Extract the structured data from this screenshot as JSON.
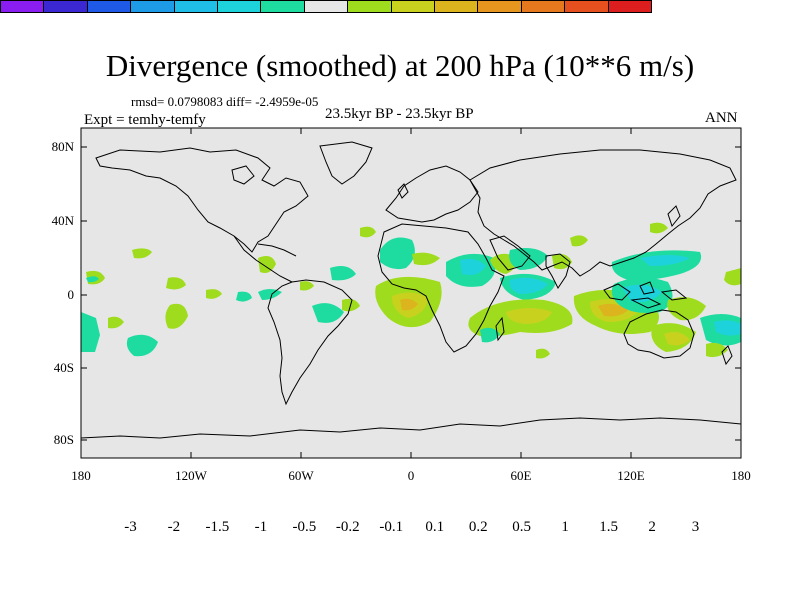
{
  "title": "Divergence (smoothed) at 200 hPa (10**6 m/s)",
  "stats": "rmsd= 0.0798083 diff= -2.4959e-05",
  "expt": "Expt = temhy-temfy",
  "period": "23.5kyr BP - 23.5kyr BP",
  "season": "ANN",
  "y_axis_labels": [
    "80N",
    "40N",
    "0",
    "40S",
    "80S"
  ],
  "x_axis_labels": [
    "180",
    "120W",
    "60W",
    "0",
    "60E",
    "120E",
    "180"
  ],
  "colorbar": {
    "labels": [
      "-3",
      "-2",
      "-1.5",
      "-1",
      "-0.5",
      "-0.2",
      "-0.1",
      "0.1",
      "0.2",
      "0.5",
      "1",
      "1.5",
      "2",
      "3"
    ],
    "colors": [
      "#8a1ef0",
      "#3c28d2",
      "#1e5ae6",
      "#1e9be6",
      "#1ebee6",
      "#1ed2dc",
      "#1edca0",
      "#e6e6e6",
      "#a0dc1e",
      "#c8d21e",
      "#dcb41e",
      "#e6961e",
      "#e6781e",
      "#e6501e",
      "#dc1e1e"
    ]
  },
  "map": {
    "background_color": "#e6e6e6",
    "lon_range": [
      -180,
      180
    ],
    "lat_range": [
      -90,
      90
    ]
  }
}
